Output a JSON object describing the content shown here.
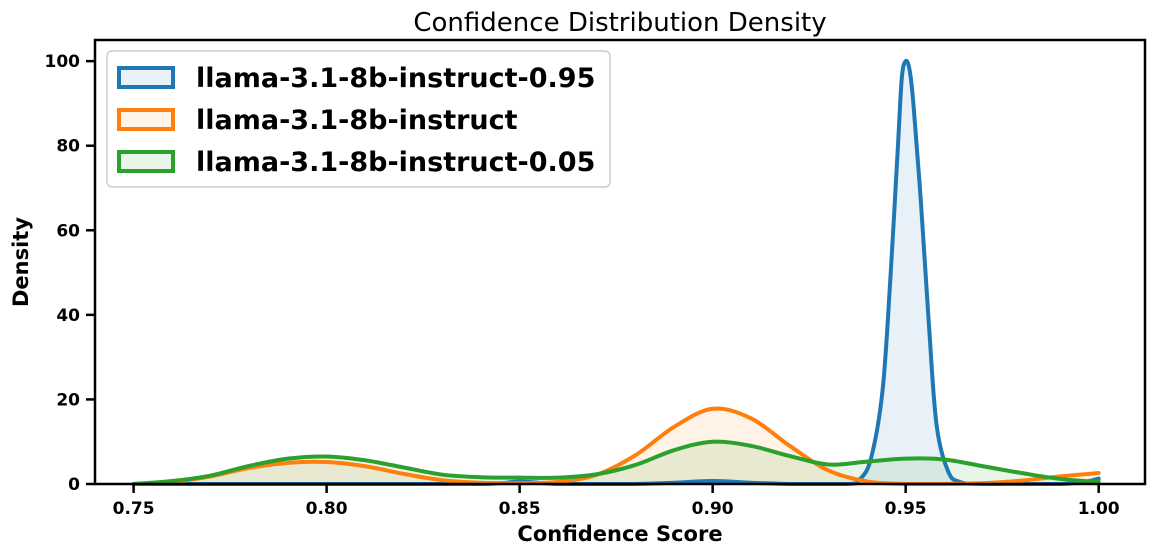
{
  "chart_data": {
    "type": "area",
    "title": "Confidence Distribution Density",
    "xlabel": "Confidence Score",
    "ylabel": "Density",
    "xlim": [
      0.74,
      1.012
    ],
    "ylim": [
      0,
      105
    ],
    "x_ticks": [
      0.75,
      0.8,
      0.85,
      0.9,
      0.95,
      1.0
    ],
    "x_tick_labels": [
      "0.75",
      "0.80",
      "0.85",
      "0.90",
      "0.95",
      "1.00"
    ],
    "y_ticks": [
      0,
      20,
      40,
      60,
      80,
      100
    ],
    "y_tick_labels": [
      "0",
      "20",
      "40",
      "60",
      "80",
      "100"
    ],
    "grid": false,
    "legend_position": "top-left",
    "series": [
      {
        "name": "llama-3.1-8b-instruct-0.95",
        "color": "#1f77b4",
        "x": [
          0.75,
          0.8,
          0.84,
          0.85,
          0.86,
          0.88,
          0.89,
          0.9,
          0.91,
          0.92,
          0.935,
          0.938,
          0.941,
          0.944,
          0.946,
          0.948,
          0.949,
          0.95,
          0.951,
          0.952,
          0.954,
          0.956,
          0.958,
          0.961,
          0.964,
          0.97,
          0.99,
          0.997,
          1.0
        ],
        "y": [
          0,
          0,
          0,
          0.6,
          0,
          0,
          0.3,
          0.7,
          0.3,
          0,
          0,
          1,
          6,
          22,
          48,
          80,
          96,
          100,
          98,
          90,
          66,
          38,
          14,
          3,
          0.5,
          0,
          0,
          0.6,
          1.3
        ]
      },
      {
        "name": "llama-3.1-8b-instruct",
        "color": "#ff7f0e",
        "x": [
          0.75,
          0.76,
          0.77,
          0.78,
          0.79,
          0.8,
          0.81,
          0.82,
          0.83,
          0.84,
          0.85,
          0.86,
          0.87,
          0.88,
          0.89,
          0.9,
          0.91,
          0.92,
          0.93,
          0.94,
          0.95,
          0.96,
          0.97,
          0.98,
          0.99,
          1.0
        ],
        "y": [
          0,
          0.5,
          1.8,
          3.8,
          5,
          5.2,
          4.2,
          2.4,
          0.9,
          0.3,
          0.2,
          0.5,
          2.2,
          6.8,
          13.5,
          17.8,
          15.5,
          9,
          3.2,
          0.6,
          0,
          0,
          0.2,
          0.8,
          1.8,
          2.6
        ]
      },
      {
        "name": "llama-3.1-8b-instruct-0.05",
        "color": "#2ca02c",
        "x": [
          0.75,
          0.76,
          0.77,
          0.78,
          0.79,
          0.8,
          0.81,
          0.82,
          0.83,
          0.84,
          0.85,
          0.86,
          0.87,
          0.88,
          0.89,
          0.9,
          0.91,
          0.92,
          0.93,
          0.94,
          0.95,
          0.96,
          0.97,
          0.98,
          0.99,
          1.0
        ],
        "y": [
          0,
          0.7,
          2,
          4.3,
          6,
          6.5,
          5.6,
          3.9,
          2.2,
          1.6,
          1.5,
          1.5,
          2.3,
          4.5,
          8,
          10,
          9,
          6.6,
          4.6,
          5.3,
          6,
          5.8,
          4.2,
          2.6,
          1.2,
          0.5
        ]
      }
    ]
  }
}
